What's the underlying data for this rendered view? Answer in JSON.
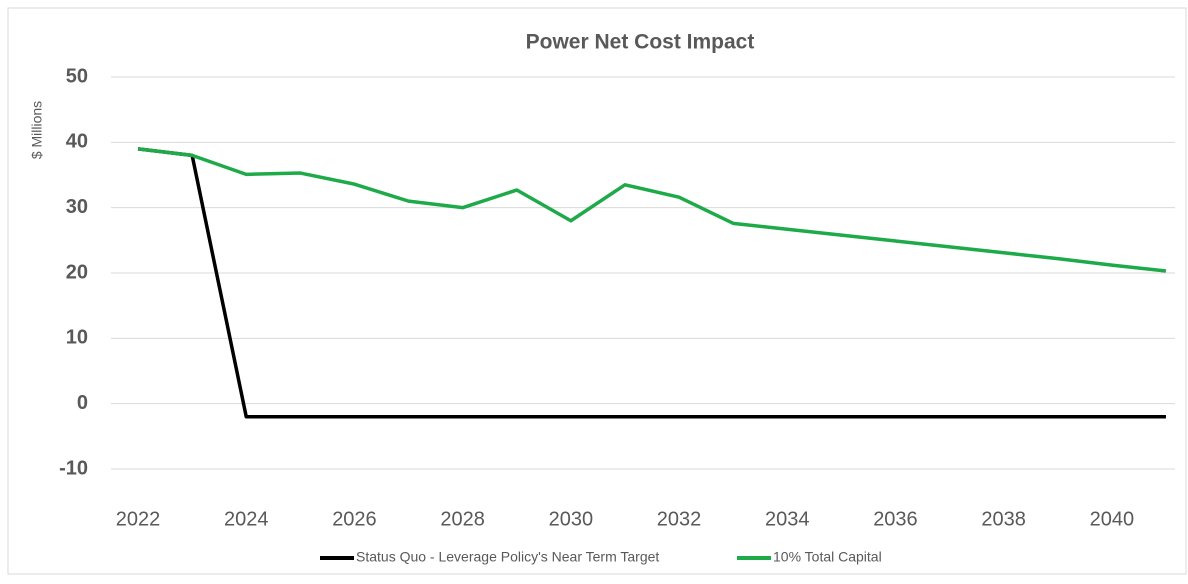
{
  "chart_data": {
    "type": "line",
    "title": "Power Net Cost Impact",
    "y_label": "$ Millions",
    "x": [
      2022,
      2023,
      2024,
      2025,
      2026,
      2027,
      2028,
      2029,
      2030,
      2031,
      2032,
      2033,
      2034,
      2035,
      2036,
      2037,
      2038,
      2039,
      2040,
      2041
    ],
    "xlim": [
      2021.5,
      2041.5
    ],
    "xticks": [
      2022,
      2024,
      2026,
      2028,
      2030,
      2032,
      2034,
      2036,
      2038,
      2040
    ],
    "ylim": [
      -10,
      50
    ],
    "yticks": [
      -10,
      0,
      10,
      20,
      30,
      40,
      50
    ],
    "grid": true,
    "legend": "bottom",
    "series": [
      {
        "name": "Status Quo - Leverage Policy's Near Term Target",
        "color": "#000000",
        "values": [
          39,
          38,
          -2,
          -2,
          -2,
          -2,
          -2,
          -2,
          -2,
          -2,
          -2,
          -2,
          -2,
          -2,
          -2,
          -2,
          -2,
          -2,
          -2,
          -2
        ]
      },
      {
        "name": "10% Total Capital",
        "color": "#1faa4a",
        "values": [
          39,
          38,
          35.1,
          35.3,
          33.6,
          31,
          30,
          32.7,
          28,
          33.5,
          31.6,
          27.6,
          26.7,
          25.8,
          24.9,
          24,
          23.1,
          22.2,
          21.2,
          20.3
        ]
      }
    ]
  }
}
